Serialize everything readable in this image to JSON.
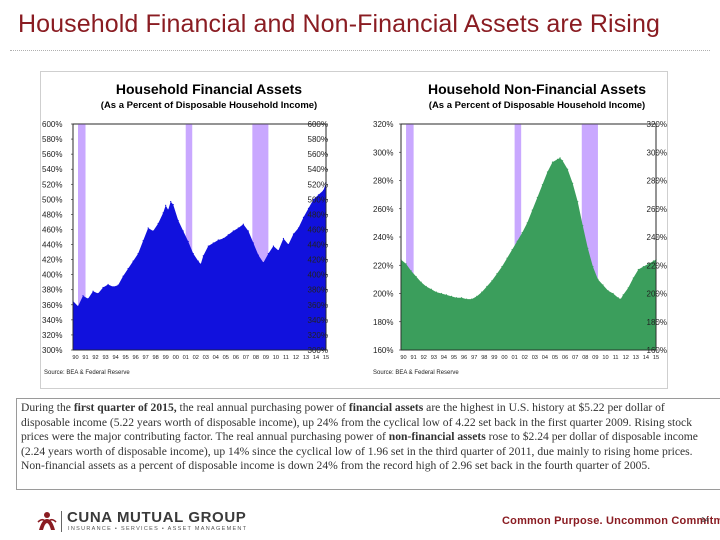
{
  "slide": {
    "title": "Household Financial and Non-Financial Assets are Rising",
    "page_number": "14"
  },
  "commentary": {
    "p1": "During the ",
    "b1": "first quarter of 2015,",
    "p2": " the real annual purchasing power of ",
    "b2": "financial assets",
    "p3": " are the highest in U.S. history at $5.22 per dollar of disposable income (5.22 years worth of disposable income), up 24% from the cyclical low of 4.22 set back in the first quarter 2009.   Rising stock prices were the major contributing factor.  The real annual purchasing power of ",
    "b3": "non-financial assets",
    "p4": " rose to $2.24 per dollar of disposable income (2.24 years worth of disposable income), up 14% since the cyclical low of 1.96 set in the third quarter of 2011, due mainly to rising home prices.  Non-financial assets as a percent of disposable income is down 24% from the record high of 2.96 set back in the fourth quarter of 2005."
  },
  "footer": {
    "brand": "CUNA MUTUAL GROUP",
    "tagline": "INSURANCE • SERVICES • ASSET MANAGEMENT",
    "slogan": "Common Purpose. Uncommon Commitment.",
    "colors": {
      "brand_red": "#8a1c22"
    }
  },
  "chart_data": [
    {
      "type": "area",
      "title": "Household Financial Assets",
      "subtitle": "(As a Percent of Disposable Household Income)",
      "source": "Source: BEA & Federal Reserve",
      "fill_color": "#1111dd",
      "recession_color": "#c9a8ff",
      "ylim": [
        300,
        600
      ],
      "y_ticks": [
        300,
        320,
        340,
        360,
        380,
        400,
        420,
        440,
        460,
        480,
        500,
        520,
        540,
        560,
        580,
        600
      ],
      "y_tick_labels": [
        "300%",
        "320%",
        "340%",
        "360%",
        "380%",
        "400%",
        "420%",
        "440%",
        "460%",
        "480%",
        "500%",
        "520%",
        "540%",
        "560%",
        "580%",
        "600%"
      ],
      "x_range": [
        1990,
        2015.25
      ],
      "x_tick_labels": [
        "90",
        "91",
        "92",
        "93",
        "94",
        "95",
        "96",
        "97",
        "98",
        "99",
        "00",
        "01",
        "02",
        "03",
        "04",
        "05",
        "06",
        "07",
        "08",
        "09",
        "10",
        "11",
        "12",
        "13",
        "14",
        "15"
      ],
      "recessions": [
        [
          1990.5,
          1991.25
        ],
        [
          2001.25,
          2001.9
        ],
        [
          2007.9,
          2009.5
        ]
      ],
      "x": [
        1990,
        1990.5,
        1991,
        1991.5,
        1992,
        1992.5,
        1993,
        1993.5,
        1994,
        1994.5,
        1995,
        1995.5,
        1996,
        1996.5,
        1997,
        1997.5,
        1998,
        1998.5,
        1999,
        1999.25,
        1999.5,
        1999.75,
        2000,
        2000.5,
        2001,
        2001.5,
        2002,
        2002.5,
        2002.75,
        2003,
        2003.5,
        2004,
        2004.5,
        2005,
        2005.5,
        2006,
        2006.5,
        2007,
        2007.5,
        2008,
        2008.5,
        2009,
        2009.5,
        2010,
        2010.5,
        2011,
        2011.5,
        2012,
        2012.5,
        2013,
        2013.5,
        2014,
        2014.5,
        2015,
        2015.25
      ],
      "values": [
        365,
        358,
        372,
        368,
        378,
        375,
        383,
        387,
        384,
        386,
        398,
        408,
        418,
        428,
        445,
        462,
        458,
        468,
        482,
        492,
        486,
        497,
        493,
        472,
        458,
        444,
        428,
        418,
        414,
        425,
        438,
        442,
        446,
        448,
        453,
        458,
        462,
        467,
        458,
        442,
        426,
        416,
        428,
        438,
        432,
        448,
        440,
        454,
        462,
        476,
        488,
        500,
        506,
        512,
        522
      ]
    },
    {
      "type": "area",
      "title": "Household Non-Financial Assets",
      "subtitle": "(As a Percent of Disposable Household Income)",
      "source": "Source: BEA & Federal Reserve",
      "fill_color": "#3b9e5c",
      "recession_color": "#c9a8ff",
      "ylim": [
        160,
        320
      ],
      "y_ticks": [
        160,
        180,
        200,
        220,
        240,
        260,
        280,
        300,
        320
      ],
      "y_tick_labels": [
        "160%",
        "180%",
        "200%",
        "220%",
        "240%",
        "260%",
        "280%",
        "300%",
        "320%"
      ],
      "x_range": [
        1990,
        2015.25
      ],
      "x_tick_labels": [
        "90",
        "91",
        "92",
        "93",
        "94",
        "95",
        "96",
        "97",
        "98",
        "99",
        "00",
        "01",
        "02",
        "03",
        "04",
        "05",
        "06",
        "07",
        "08",
        "09",
        "10",
        "11",
        "12",
        "13",
        "14",
        "15"
      ],
      "recessions": [
        [
          1990.5,
          1991.25
        ],
        [
          2001.25,
          2001.9
        ],
        [
          2007.9,
          2009.5
        ]
      ],
      "x": [
        1990,
        1990.5,
        1991,
        1991.5,
        1992,
        1992.5,
        1993,
        1993.5,
        1994,
        1994.5,
        1995,
        1995.5,
        1996,
        1996.5,
        1997,
        1997.5,
        1998,
        1998.5,
        1999,
        1999.5,
        2000,
        2000.5,
        2001,
        2001.5,
        2002,
        2002.5,
        2003,
        2003.5,
        2004,
        2004.5,
        2005,
        2005.5,
        2005.75,
        2006,
        2006.5,
        2007,
        2007.5,
        2008,
        2008.5,
        2009,
        2009.5,
        2010,
        2010.5,
        2011,
        2011.5,
        2011.75,
        2012,
        2012.5,
        2013,
        2013.5,
        2014,
        2014.5,
        2015,
        2015.25
      ],
      "values": [
        224,
        221,
        216,
        212,
        208,
        205,
        203,
        201,
        200,
        199,
        198,
        197,
        197,
        196,
        196,
        198,
        201,
        205,
        209,
        214,
        219,
        225,
        231,
        237,
        243,
        250,
        259,
        268,
        277,
        286,
        293,
        295,
        296,
        294,
        288,
        278,
        265,
        248,
        232,
        219,
        210,
        206,
        202,
        200,
        197,
        196,
        199,
        204,
        211,
        217,
        219,
        221,
        223,
        224
      ]
    }
  ]
}
